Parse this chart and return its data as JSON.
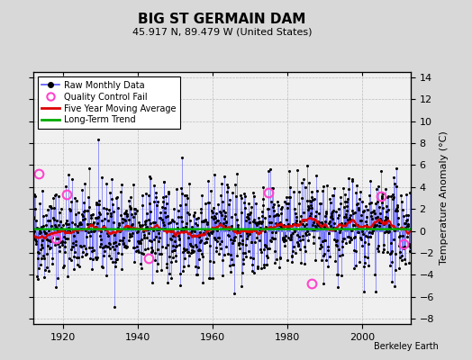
{
  "title": "BIG ST GERMAIN DAM",
  "subtitle": "45.917 N, 89.479 W (United States)",
  "ylabel": "Temperature Anomaly (°C)",
  "credit": "Berkeley Earth",
  "year_start": 1912,
  "year_end": 2013,
  "ylim": [
    -8.5,
    14.5
  ],
  "yticks": [
    -8,
    -6,
    -4,
    -2,
    0,
    2,
    4,
    6,
    8,
    10,
    12,
    14
  ],
  "xticks": [
    1920,
    1940,
    1960,
    1980,
    2000
  ],
  "bg_color": "#d8d8d8",
  "plot_bg_color": "#f0f0f0",
  "raw_color": "#5555ff",
  "raw_alpha": 0.85,
  "ma_color": "#dd0000",
  "trend_color": "#00aa00",
  "qc_color": "#ff44cc",
  "seed": 42,
  "n_std": 2.5,
  "qc_points": [
    [
      1913.5,
      5.2
    ],
    [
      1918.0,
      -0.7
    ],
    [
      1921.0,
      3.3
    ],
    [
      1943.0,
      -2.5
    ],
    [
      1975.0,
      3.5
    ],
    [
      1986.5,
      -4.8
    ],
    [
      2005.0,
      3.2
    ],
    [
      2011.0,
      -1.2
    ]
  ]
}
